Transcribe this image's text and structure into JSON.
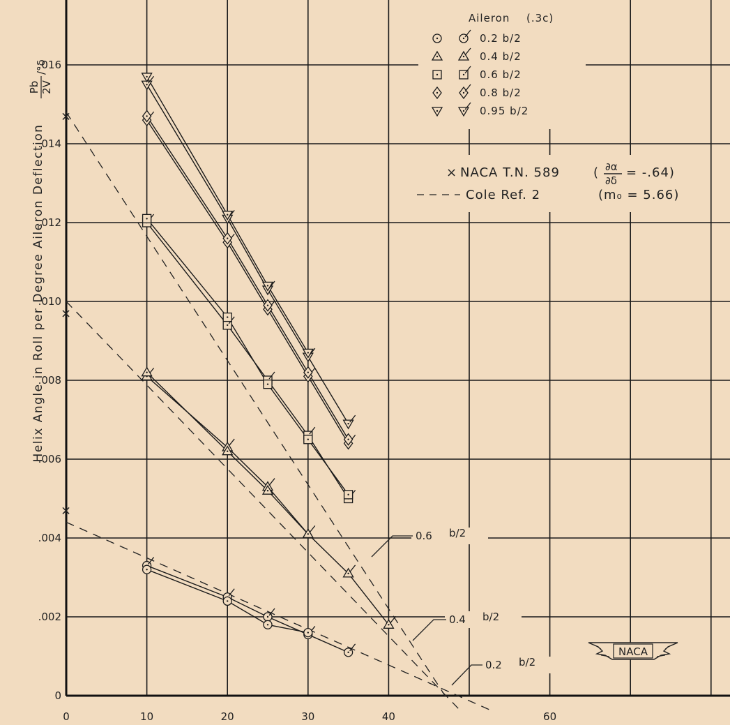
{
  "chart_data": {
    "type": "line",
    "x_ticks": [
      "0",
      "10",
      "20",
      "30",
      "40",
      "60"
    ],
    "y_ticks": [
      "0",
      ".002",
      ".004",
      ".006",
      ".008",
      ".010",
      ".012",
      ".014",
      ".016"
    ],
    "xlim": [
      0,
      70
    ],
    "ylim": [
      0,
      0.018
    ],
    "grid": true,
    "ylabel_main": "Helix Angle in Roll per Degree Aileron Deflection",
    "ylabel_fraction": {
      "numerator": "Pb",
      "denominator": "2V",
      "suffix": "/°δ"
    },
    "legend": {
      "placement": "top-right",
      "title": "Aileron",
      "title_suffix": "(.3c)",
      "entries": [
        {
          "marker": "circle",
          "label": "0.2   b/2"
        },
        {
          "marker": "triangle",
          "label": "0.4   b/2"
        },
        {
          "marker": "square",
          "label": "0.6   b/2"
        },
        {
          "marker": "diamond",
          "label": "0.8   b/2"
        },
        {
          "marker": "triangle-down",
          "label": "0.95  b/2"
        }
      ]
    },
    "reference_legend": {
      "naca_label": "NACA  T.N. 589",
      "naca_fraction": {
        "numerator": "∂α",
        "denominator": "∂δ"
      },
      "naca_value": "= -.64)",
      "cole_label": "Cole Ref. 2",
      "cole_value": "(m₀  = 5.66)"
    },
    "series": [
      {
        "marker": "circle",
        "x": [
          10,
          20,
          25,
          30,
          35
        ],
        "y": [
          0.0033,
          0.0025,
          0.002,
          0.00155,
          0.0011
        ]
      },
      {
        "marker": "circle",
        "x": [
          10,
          20,
          25,
          30
        ],
        "y": [
          0.0032,
          0.0024,
          0.0018,
          0.0016
        ]
      },
      {
        "marker": "triangle",
        "x": [
          10,
          20,
          25,
          30,
          35,
          40
        ],
        "y": [
          0.0081,
          0.0063,
          0.0053,
          0.0041,
          0.0031,
          0.0018
        ]
      },
      {
        "marker": "triangle",
        "x": [
          10,
          20,
          25,
          30
        ],
        "y": [
          0.0082,
          0.0062,
          0.0052,
          0.0041
        ]
      },
      {
        "marker": "square",
        "x": [
          10,
          20,
          25,
          30,
          35
        ],
        "y": [
          0.012,
          0.0094,
          0.008,
          0.0066,
          0.005
        ]
      },
      {
        "marker": "square",
        "x": [
          10,
          20,
          25,
          30,
          35
        ],
        "y": [
          0.0121,
          0.0096,
          0.0079,
          0.0065,
          0.0051
        ]
      },
      {
        "marker": "diamond",
        "x": [
          10,
          20,
          25,
          30,
          35
        ],
        "y": [
          0.0146,
          0.0115,
          0.0098,
          0.0081,
          0.0064
        ]
      },
      {
        "marker": "diamond",
        "x": [
          10,
          20,
          25,
          30,
          35
        ],
        "y": [
          0.0147,
          0.0116,
          0.0099,
          0.0082,
          0.0065
        ]
      },
      {
        "marker": "triangle-down",
        "x": [
          10,
          20,
          25,
          30,
          35
        ],
        "y": [
          0.0155,
          0.0121,
          0.0103,
          0.0086,
          0.0069
        ]
      },
      {
        "marker": "triangle-down",
        "x": [
          10,
          20,
          25,
          30
        ],
        "y": [
          0.0157,
          0.0122,
          0.0104,
          0.0087
        ]
      }
    ],
    "naca_points": [
      {
        "x": 0,
        "y": 0.0147
      },
      {
        "x": 0,
        "y": 0.0097
      },
      {
        "x": 0,
        "y": 0.0047
      }
    ],
    "dashed_lines": [
      {
        "label": "0.6  b/2",
        "x": [
          0,
          47
        ],
        "y": [
          0.0148,
          0.0
        ]
      },
      {
        "label": "0.4  b/2",
        "x": [
          0,
          49
        ],
        "y": [
          0.01,
          -0.0004
        ]
      },
      {
        "label": "0.2  b/2",
        "x": [
          0,
          53
        ],
        "y": [
          0.0044,
          -0.0004
        ]
      }
    ],
    "annotations": [
      {
        "text": "0.6",
        "sub": "b/2"
      },
      {
        "text": "0.4",
        "sub": "b/2"
      },
      {
        "text": "0.2",
        "sub": "b/2"
      }
    ],
    "logo": "NACA"
  }
}
